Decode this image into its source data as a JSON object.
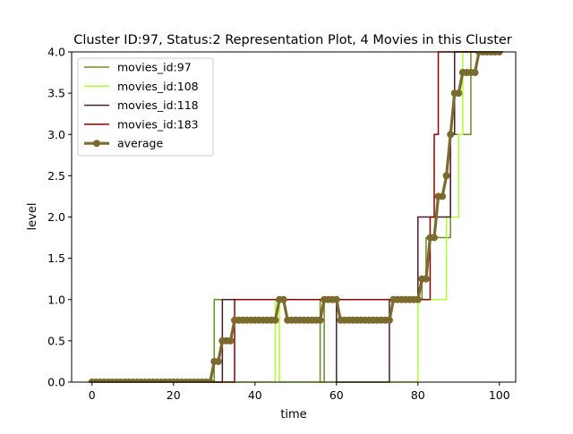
{
  "chart_data": {
    "type": "line",
    "title": "Cluster ID:97, Status:2 Representation Plot, 4 Movies in this Cluster",
    "xlabel": "time",
    "ylabel": "level",
    "xlim": [
      -5,
      104
    ],
    "ylim": [
      0,
      4
    ],
    "x_ticks": [
      "0",
      "20",
      "40",
      "60",
      "80",
      "100"
    ],
    "y_ticks": [
      "0.0",
      "0.5",
      "1.0",
      "1.5",
      "2.0",
      "2.5",
      "3.0",
      "3.5",
      "4.0"
    ],
    "grid": false,
    "legend_placement": "top-left",
    "series": [
      {
        "name": "movies_id:97",
        "color": "#6b8e23",
        "steps": [
          [
            0,
            0
          ],
          [
            30,
            1
          ],
          [
            56,
            0
          ],
          [
            57,
            1
          ],
          [
            80,
            1
          ],
          [
            81,
            1.25
          ],
          [
            82,
            1.75
          ],
          [
            88,
            3
          ],
          [
            93,
            4
          ],
          [
            100,
            4
          ]
        ]
      },
      {
        "name": "movies_id:108",
        "color": "#adff2f",
        "steps": [
          [
            0,
            0
          ],
          [
            45,
            1
          ],
          [
            46,
            0
          ],
          [
            52,
            0
          ],
          [
            53,
            0
          ],
          [
            80,
            1
          ],
          [
            87,
            2
          ],
          [
            90,
            3
          ],
          [
            91,
            4
          ],
          [
            100,
            4
          ]
        ]
      },
      {
        "name": "movies_id:118",
        "color": "#4b1e2f",
        "steps": [
          [
            0,
            0
          ],
          [
            32,
            1
          ],
          [
            60,
            0
          ],
          [
            73,
            1
          ],
          [
            80,
            1
          ],
          [
            80,
            2
          ],
          [
            86,
            2
          ],
          [
            88,
            3
          ],
          [
            89,
            4
          ],
          [
            100,
            4
          ]
        ]
      },
      {
        "name": "movies_id:183",
        "color": "#8b0000",
        "steps": [
          [
            0,
            0
          ],
          [
            35,
            1
          ],
          [
            81,
            1
          ],
          [
            83,
            2
          ],
          [
            84,
            3
          ],
          [
            85,
            4
          ],
          [
            100,
            4
          ]
        ]
      }
    ],
    "average": {
      "name": "average",
      "color": "#7a6a2e",
      "x": [
        0,
        1,
        2,
        3,
        4,
        5,
        6,
        7,
        8,
        9,
        10,
        11,
        12,
        13,
        14,
        15,
        16,
        17,
        18,
        19,
        20,
        21,
        22,
        23,
        24,
        25,
        26,
        27,
        28,
        29,
        30,
        31,
        32,
        33,
        34,
        35,
        36,
        37,
        38,
        39,
        40,
        41,
        42,
        43,
        44,
        45,
        46,
        47,
        48,
        49,
        50,
        51,
        52,
        53,
        54,
        55,
        56,
        57,
        58,
        59,
        60,
        61,
        62,
        63,
        64,
        65,
        66,
        67,
        68,
        69,
        70,
        71,
        72,
        73,
        74,
        75,
        76,
        77,
        78,
        79,
        80,
        81,
        82,
        83,
        84,
        85,
        86,
        87,
        88,
        89,
        90,
        91,
        92,
        93,
        94,
        95,
        96,
        97,
        98,
        99,
        100
      ],
      "y": [
        0,
        0,
        0,
        0,
        0,
        0,
        0,
        0,
        0,
        0,
        0,
        0,
        0,
        0,
        0,
        0,
        0,
        0,
        0,
        0,
        0,
        0,
        0,
        0,
        0,
        0,
        0,
        0,
        0,
        0,
        0.25,
        0.25,
        0.5,
        0.5,
        0.5,
        0.75,
        0.75,
        0.75,
        0.75,
        0.75,
        0.75,
        0.75,
        0.75,
        0.75,
        0.75,
        0.75,
        1,
        1,
        0.75,
        0.75,
        0.75,
        0.75,
        0.75,
        0.75,
        0.75,
        0.75,
        0.75,
        1,
        1,
        1,
        1,
        0.75,
        0.75,
        0.75,
        0.75,
        0.75,
        0.75,
        0.75,
        0.75,
        0.75,
        0.75,
        0.75,
        0.75,
        0.75,
        1,
        1,
        1,
        1,
        1,
        1,
        1,
        1.25,
        1.25,
        1.75,
        1.75,
        2.25,
        2.25,
        2.5,
        3,
        3.5,
        3.5,
        3.75,
        3.75,
        3.75,
        3.75,
        4,
        4,
        4,
        4,
        4,
        4
      ]
    }
  }
}
